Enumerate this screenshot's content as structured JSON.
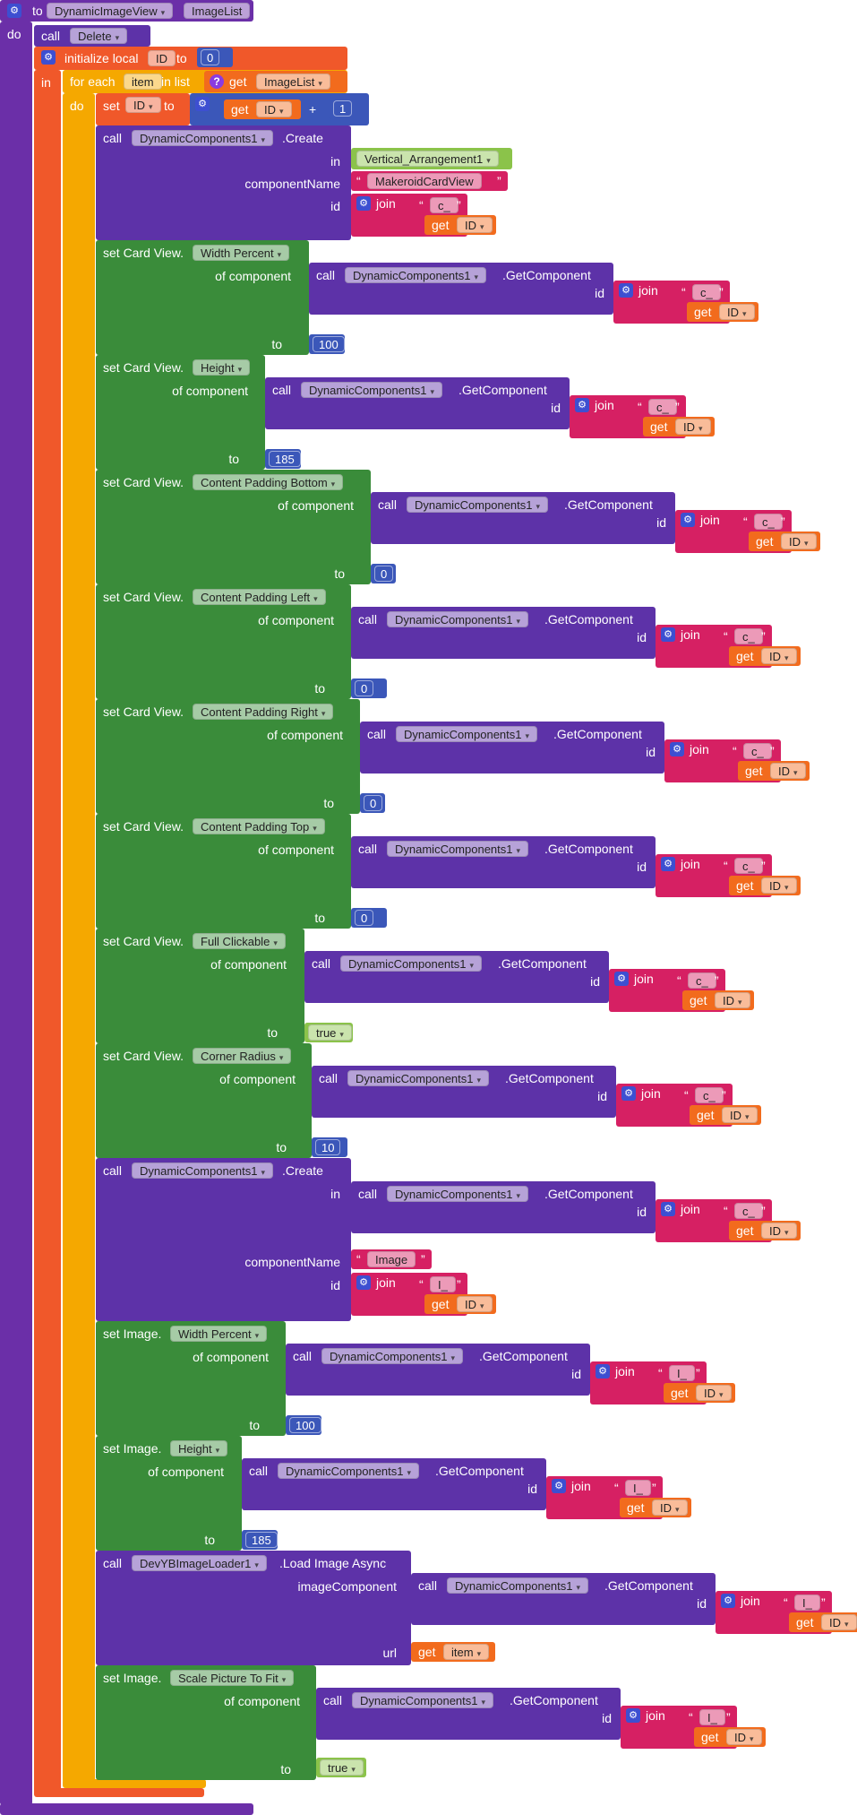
{
  "kw": {
    "to": "to",
    "do": "do",
    "in": "in",
    "call": "call",
    "initialize_local": "initialize local",
    "for_each": "for each",
    "in_list": "in list",
    "get": "get",
    "set": "set",
    "create": ".Create",
    "get_component": ".GetComponent",
    "join": "join",
    "plus": "+",
    "of_component": "of component",
    "id": "id",
    "component_name": "componentName",
    "image_component": "imageComponent",
    "url": "url",
    "load_image_async": ".Load Image Async",
    "set_card_view": "set Card View.",
    "set_image": "set Image.",
    "quote_open": "“",
    "quote_close": "”"
  },
  "procedure": {
    "name": "DynamicImageView",
    "param": "ImageList"
  },
  "delete_call": {
    "name": "Delete"
  },
  "local_var": {
    "name": "ID",
    "init": "0"
  },
  "loop": {
    "item": "item",
    "list_var": "ImageList"
  },
  "increment": {
    "var": "ID",
    "get_var": "ID",
    "amount": "1"
  },
  "dynamic_components": "DynamicComponents1",
  "create_card": {
    "in": "Vertical_Arrangement1",
    "component_name": "MakeroidCardView",
    "id_prefix": "c_",
    "id_var": "ID"
  },
  "card_props": [
    {
      "prop": "Width Percent",
      "value": "100",
      "prefix": "c_",
      "var": "ID"
    },
    {
      "prop": "Height",
      "value": "185",
      "prefix": "c_",
      "var": "ID"
    },
    {
      "prop": "Content Padding Bottom",
      "value": "0",
      "prefix": "c_",
      "var": "ID"
    },
    {
      "prop": "Content Padding Left",
      "value": "0",
      "prefix": "c_",
      "var": "ID"
    },
    {
      "prop": "Content Padding Right",
      "value": "0",
      "prefix": "c_",
      "var": "ID"
    },
    {
      "prop": "Content Padding Top",
      "value": "0",
      "prefix": "c_",
      "var": "ID"
    },
    {
      "prop": "Full Clickable",
      "value": "true",
      "prefix": "c_",
      "var": "ID"
    },
    {
      "prop": "Corner Radius",
      "value": "10",
      "prefix": "c_",
      "var": "ID"
    }
  ],
  "create_image": {
    "in_prefix": "c_",
    "in_var": "ID",
    "component_name": "Image",
    "id_prefix": "I_",
    "id_var": "ID"
  },
  "image_props": [
    {
      "prop": "Width Percent",
      "value": "100",
      "prefix": "I_",
      "var": "ID"
    },
    {
      "prop": "Height",
      "value": "185",
      "prefix": "I_",
      "var": "ID"
    }
  ],
  "load_image": {
    "component": "DevYBImageLoader1",
    "prefix": "I_",
    "var": "ID",
    "url_var": "item"
  },
  "image_scale": {
    "prop": "Scale Picture To Fit",
    "value": "true",
    "prefix": "I_",
    "var": "ID"
  },
  "colors": {
    "procedure": "#6b2fa8",
    "call": "#5d32a8",
    "local": "#f0582a",
    "loop": "#f5a800",
    "set": "#3a8c3a",
    "math": "#3b57b9",
    "text": "#d62063",
    "get": "#f26b1d",
    "logic": "#8bc34a"
  }
}
